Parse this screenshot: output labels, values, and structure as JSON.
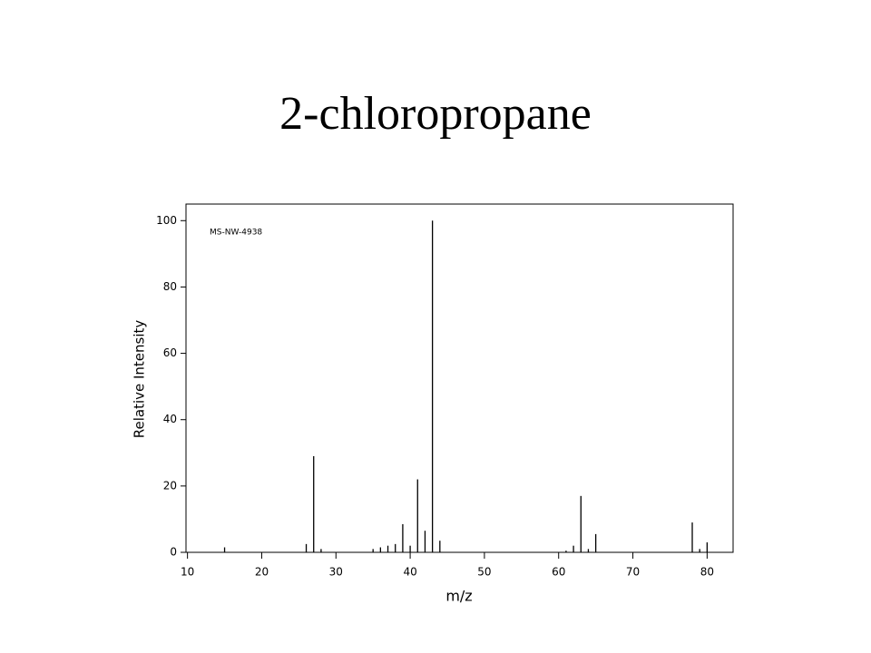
{
  "chart_data": {
    "type": "stem",
    "title": "2-chloropropane",
    "annotation": "MS-NW-4938",
    "xlabel": "m/z",
    "ylabel": "Relative Intensity",
    "x": [
      15,
      26,
      27,
      28,
      35,
      36,
      37,
      38,
      39,
      40,
      41,
      42,
      43,
      44,
      61,
      62,
      63,
      64,
      65,
      78,
      79,
      80
    ],
    "values": [
      1.5,
      2.5,
      29,
      1,
      1,
      1.5,
      2,
      2.5,
      8.5,
      2,
      22,
      6.5,
      100,
      3.5,
      0.5,
      2,
      17,
      1,
      5.5,
      9,
      1,
      3
    ],
    "color": "#000000",
    "xlim": [
      9.8,
      83.5
    ],
    "xticks": [
      10,
      20,
      30,
      40,
      50,
      60,
      70,
      80
    ],
    "ylim": [
      0,
      105
    ],
    "yticks": [
      0,
      20,
      40,
      60,
      80,
      100
    ]
  }
}
